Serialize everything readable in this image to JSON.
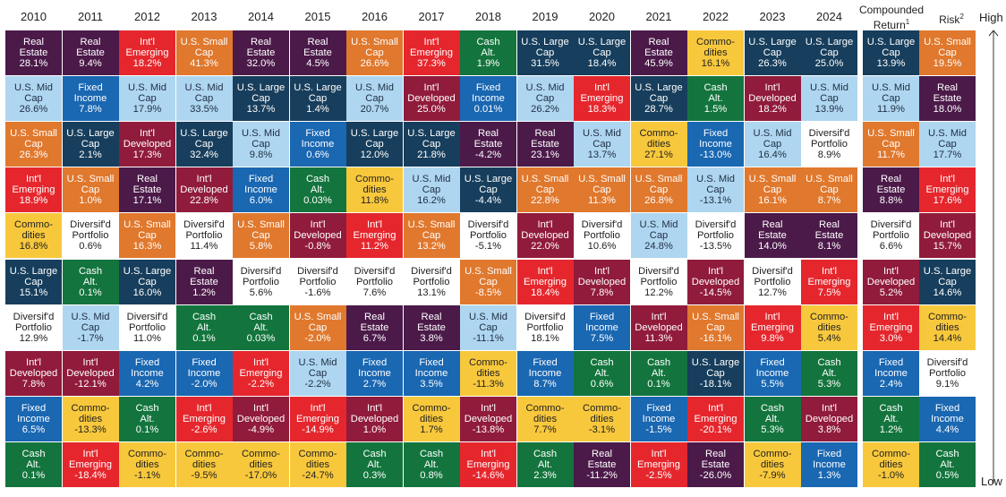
{
  "chart_data": {
    "type": "table",
    "title": "",
    "years": [
      "2010",
      "2011",
      "2012",
      "2013",
      "2014",
      "2015",
      "2016",
      "2017",
      "2018",
      "2019",
      "2020",
      "2021",
      "2022",
      "2023",
      "2024"
    ],
    "summary_headers": {
      "compounded_return": "Compounded Return",
      "compounded_return_sup": "1",
      "risk": "Risk",
      "risk_sup": "2"
    },
    "axis": {
      "high": "High",
      "low": "Low"
    },
    "assets": {
      "re": {
        "lines": [
          "Real",
          "Estate"
        ],
        "color": "#4b1a49",
        "text": "#ffffff"
      },
      "ie": {
        "lines": [
          "Int'l",
          "Emerging"
        ],
        "color": "#e5272d",
        "text": "#ffffff"
      },
      "usc": {
        "lines": [
          "U.S. Small",
          "Cap"
        ],
        "color": "#e0782d",
        "text": "#ffffff"
      },
      "ulc": {
        "lines": [
          "U.S. Large",
          "Cap"
        ],
        "color": "#173e5c",
        "text": "#ffffff"
      },
      "ca": {
        "lines": [
          "Cash",
          "Alt."
        ],
        "color": "#13753d",
        "text": "#ffffff"
      },
      "com": {
        "lines": [
          "Commo-",
          "dities"
        ],
        "color": "#f8c83c",
        "text": "#222222"
      },
      "umc": {
        "lines": [
          "U.S. Mid",
          "Cap"
        ],
        "color": "#afd6f0",
        "text": "#1e2e44"
      },
      "fi": {
        "lines": [
          "Fixed",
          "Income"
        ],
        "color": "#1a67b2",
        "text": "#ffffff"
      },
      "id": {
        "lines": [
          "Int'l",
          "Developed"
        ],
        "color": "#901b3b",
        "text": "#ffffff"
      },
      "dp": {
        "lines": [
          "Diversif'd",
          "Portfolio"
        ],
        "color": "#ffffff",
        "text": "#222222"
      }
    },
    "columns": [
      [
        [
          "re",
          "28.1%"
        ],
        [
          "umc",
          "26.6%"
        ],
        [
          "usc",
          "26.3%"
        ],
        [
          "ie",
          "18.9%"
        ],
        [
          "com",
          "16.8%"
        ],
        [
          "ulc",
          "15.1%"
        ],
        [
          "dp",
          "12.9%"
        ],
        [
          "id",
          "7.8%"
        ],
        [
          "fi",
          "6.5%"
        ],
        [
          "ca",
          "0.1%"
        ]
      ],
      [
        [
          "re",
          "9.4%"
        ],
        [
          "fi",
          "7.8%"
        ],
        [
          "ulc",
          "2.1%"
        ],
        [
          "usc",
          "1.0%"
        ],
        [
          "dp",
          "0.6%"
        ],
        [
          "ca",
          "0.1%"
        ],
        [
          "umc",
          "-1.7%"
        ],
        [
          "id",
          "-12.1%"
        ],
        [
          "com",
          "-13.3%"
        ],
        [
          "ie",
          "-18.4%"
        ]
      ],
      [
        [
          "ie",
          "18.2%"
        ],
        [
          "umc",
          "17.9%"
        ],
        [
          "id",
          "17.3%"
        ],
        [
          "re",
          "17.1%"
        ],
        [
          "usc",
          "16.3%"
        ],
        [
          "ulc",
          "16.0%"
        ],
        [
          "dp",
          "11.0%"
        ],
        [
          "fi",
          "4.2%"
        ],
        [
          "ca",
          "0.1%"
        ],
        [
          "com",
          "-1.1%"
        ]
      ],
      [
        [
          "usc",
          "41.3%"
        ],
        [
          "umc",
          "33.5%"
        ],
        [
          "ulc",
          "32.4%"
        ],
        [
          "id",
          "22.8%"
        ],
        [
          "dp",
          "11.4%"
        ],
        [
          "re",
          "1.2%"
        ],
        [
          "ca",
          "0.1%"
        ],
        [
          "fi",
          "-2.0%"
        ],
        [
          "ie",
          "-2.6%"
        ],
        [
          "com",
          "-9.5%"
        ]
      ],
      [
        [
          "re",
          "32.0%"
        ],
        [
          "ulc",
          "13.7%"
        ],
        [
          "umc",
          "9.8%"
        ],
        [
          "fi",
          "6.0%"
        ],
        [
          "usc",
          "5.8%"
        ],
        [
          "dp",
          "5.6%"
        ],
        [
          "ca",
          "0.03%"
        ],
        [
          "ie",
          "-2.2%"
        ],
        [
          "id",
          "-4.9%"
        ],
        [
          "com",
          "-17.0%"
        ]
      ],
      [
        [
          "re",
          "4.5%"
        ],
        [
          "ulc",
          "1.4%"
        ],
        [
          "fi",
          "0.6%"
        ],
        [
          "ca",
          "0.03%"
        ],
        [
          "id",
          "-0.8%"
        ],
        [
          "dp",
          "-1.6%"
        ],
        [
          "usc",
          "-2.0%"
        ],
        [
          "umc",
          "-2.2%"
        ],
        [
          "ie",
          "-14.9%"
        ],
        [
          "com",
          "-24.7%"
        ]
      ],
      [
        [
          "usc",
          "26.6%"
        ],
        [
          "umc",
          "20.7%"
        ],
        [
          "ulc",
          "12.0%"
        ],
        [
          "com",
          "11.8%"
        ],
        [
          "ie",
          "11.2%"
        ],
        [
          "dp",
          "7.6%"
        ],
        [
          "re",
          "6.7%"
        ],
        [
          "fi",
          "2.7%"
        ],
        [
          "id",
          "1.0%"
        ],
        [
          "ca",
          "0.3%"
        ]
      ],
      [
        [
          "ie",
          "37.3%"
        ],
        [
          "id",
          "25.0%"
        ],
        [
          "ulc",
          "21.8%"
        ],
        [
          "umc",
          "16.2%"
        ],
        [
          "usc",
          "13.2%"
        ],
        [
          "dp",
          "13.1%"
        ],
        [
          "re",
          "3.8%"
        ],
        [
          "fi",
          "3.5%"
        ],
        [
          "com",
          "1.7%"
        ],
        [
          "ca",
          "0.8%"
        ]
      ],
      [
        [
          "ca",
          "1.9%"
        ],
        [
          "fi",
          "0.01%"
        ],
        [
          "re",
          "-4.2%"
        ],
        [
          "ulc",
          "-4.4%"
        ],
        [
          "dp",
          "-5.1%"
        ],
        [
          "usc",
          "-8.5%"
        ],
        [
          "umc",
          "-11.1%"
        ],
        [
          "com",
          "-11.3%"
        ],
        [
          "id",
          "-13.8%"
        ],
        [
          "ie",
          "-14.6%"
        ]
      ],
      [
        [
          "ulc",
          "31.5%"
        ],
        [
          "umc",
          "26.2%"
        ],
        [
          "re",
          "23.1%"
        ],
        [
          "usc",
          "22.8%"
        ],
        [
          "id",
          "22.0%"
        ],
        [
          "ie",
          "18.4%"
        ],
        [
          "dp",
          "18.1%"
        ],
        [
          "fi",
          "8.7%"
        ],
        [
          "com",
          "7.7%"
        ],
        [
          "ca",
          "2.3%"
        ]
      ],
      [
        [
          "ulc",
          "18.4%"
        ],
        [
          "ie",
          "18.3%"
        ],
        [
          "umc",
          "13.7%"
        ],
        [
          "usc",
          "11.3%"
        ],
        [
          "dp",
          "10.6%"
        ],
        [
          "id",
          "7.8%"
        ],
        [
          "fi",
          "7.5%"
        ],
        [
          "ca",
          "0.6%"
        ],
        [
          "com",
          "-3.1%"
        ],
        [
          "re",
          "-11.2%"
        ]
      ],
      [
        [
          "re",
          "45.9%"
        ],
        [
          "ulc",
          "28.7%"
        ],
        [
          "com",
          "27.1%"
        ],
        [
          "usc",
          "26.8%"
        ],
        [
          "umc",
          "24.8%"
        ],
        [
          "dp",
          "12.2%"
        ],
        [
          "id",
          "11.3%"
        ],
        [
          "ca",
          "0.1%"
        ],
        [
          "fi",
          "-1.5%"
        ],
        [
          "ie",
          "-2.5%"
        ]
      ],
      [
        [
          "com",
          "16.1%"
        ],
        [
          "ca",
          "1.5%"
        ],
        [
          "fi",
          "-13.0%"
        ],
        [
          "umc",
          "-13.1%"
        ],
        [
          "dp",
          "-13.5%"
        ],
        [
          "id",
          "-14.5%"
        ],
        [
          "usc",
          "-16.1%"
        ],
        [
          "ulc",
          "-18.1%"
        ],
        [
          "ie",
          "-20.1%"
        ],
        [
          "re",
          "-26.0%"
        ]
      ],
      [
        [
          "ulc",
          "26.3%"
        ],
        [
          "id",
          "18.2%"
        ],
        [
          "umc",
          "16.4%"
        ],
        [
          "usc",
          "16.1%"
        ],
        [
          "re",
          "14.0%"
        ],
        [
          "dp",
          "12.7%"
        ],
        [
          "ie",
          "9.8%"
        ],
        [
          "fi",
          "5.5%"
        ],
        [
          "ca",
          "5.3%"
        ],
        [
          "com",
          "-7.9%"
        ]
      ],
      [
        [
          "ulc",
          "25.0%"
        ],
        [
          "umc",
          "13.9%"
        ],
        [
          "dp",
          "8.9%"
        ],
        [
          "usc",
          "8.7%"
        ],
        [
          "re",
          "8.1%"
        ],
        [
          "ie",
          "7.5%"
        ],
        [
          "com",
          "5.4%"
        ],
        [
          "ca",
          "5.3%"
        ],
        [
          "id",
          "3.8%"
        ],
        [
          "fi",
          "1.3%"
        ]
      ]
    ],
    "compounded_return": [
      [
        "ulc",
        "13.9%"
      ],
      [
        "umc",
        "11.9%"
      ],
      [
        "usc",
        "11.7%"
      ],
      [
        "re",
        "8.8%"
      ],
      [
        "dp",
        "6.6%"
      ],
      [
        "id",
        "5.2%"
      ],
      [
        "ie",
        "3.0%"
      ],
      [
        "fi",
        "2.4%"
      ],
      [
        "ca",
        "1.2%"
      ],
      [
        "com",
        "-1.0%"
      ]
    ],
    "risk": [
      [
        "usc",
        "19.5%"
      ],
      [
        "re",
        "18.0%"
      ],
      [
        "umc",
        "17.7%"
      ],
      [
        "ie",
        "17.6%"
      ],
      [
        "id",
        "15.7%"
      ],
      [
        "ulc",
        "14.6%"
      ],
      [
        "com",
        "14.4%"
      ],
      [
        "dp",
        "9.1%"
      ],
      [
        "fi",
        "4.4%"
      ],
      [
        "ca",
        "0.5%"
      ]
    ]
  }
}
